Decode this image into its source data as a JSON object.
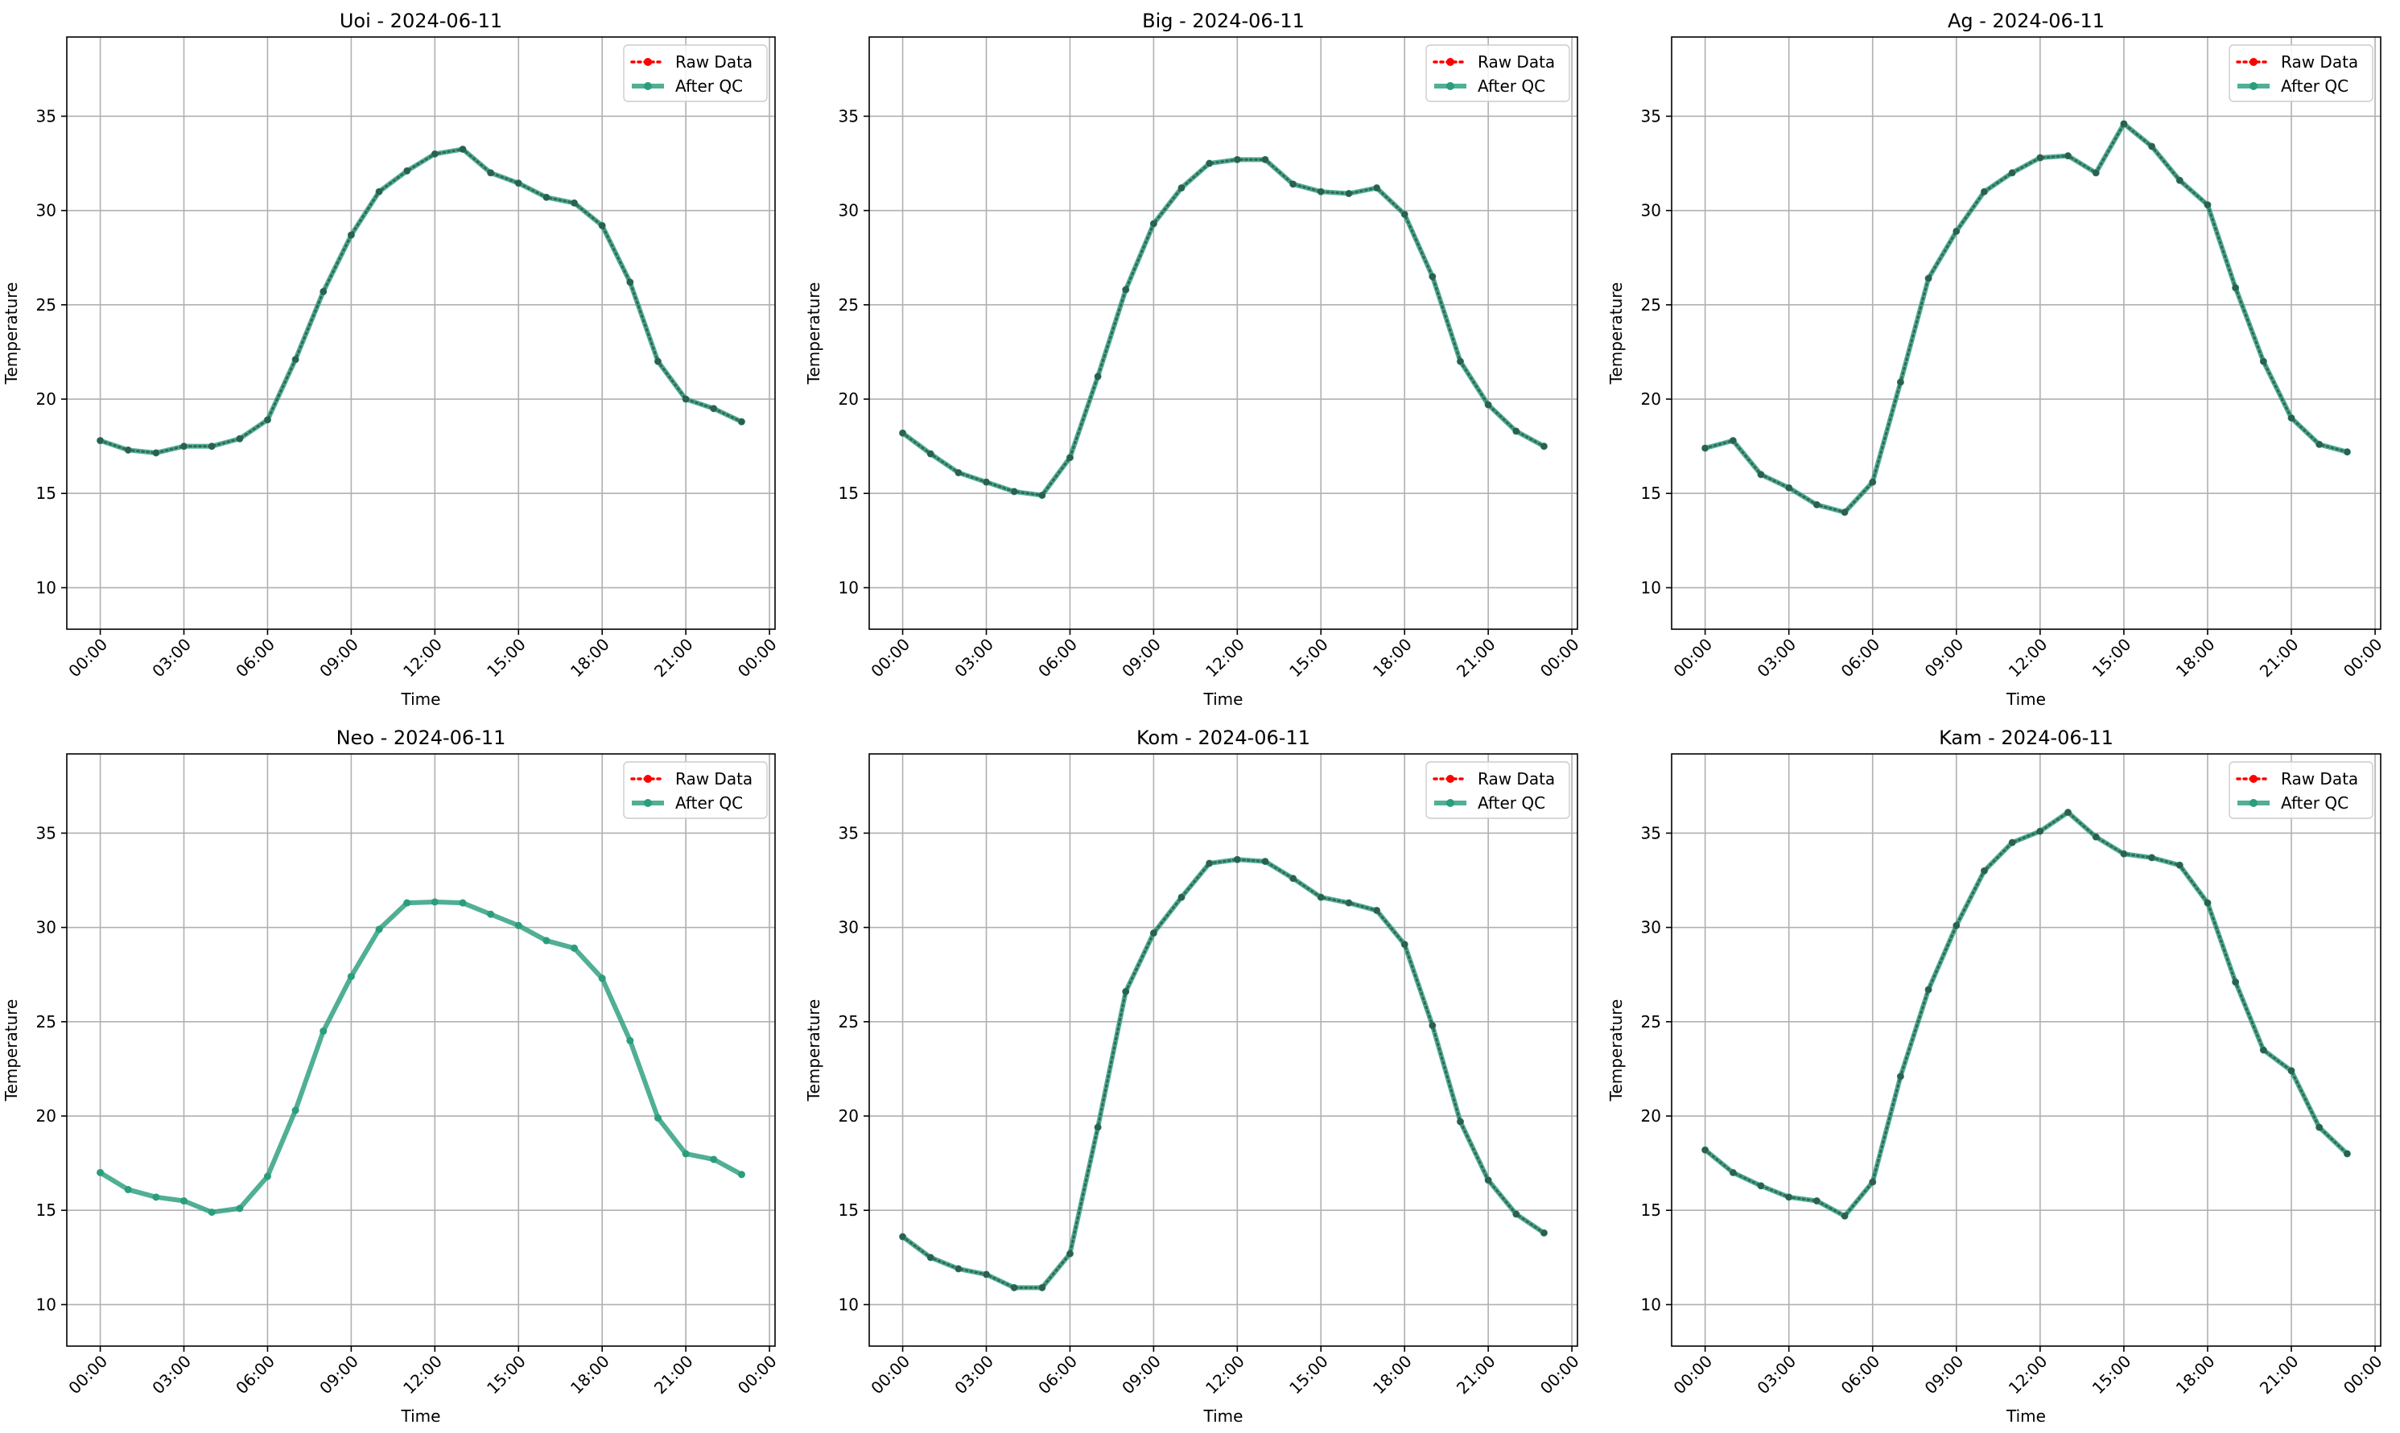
{
  "chart_data": [
    {
      "type": "line",
      "title": "Uoi - 2024-06-11",
      "xlabel": "Time",
      "ylabel": "Temperature",
      "x_ticks": [
        "00:00",
        "03:00",
        "06:00",
        "09:00",
        "12:00",
        "15:00",
        "18:00",
        "21:00",
        "00:00"
      ],
      "y_ticks": [
        10,
        15,
        20,
        25,
        30,
        35
      ],
      "xlim_hours": [
        -1.2,
        24.2
      ],
      "ylim": [
        7.8,
        39.2
      ],
      "grid": true,
      "legend_position": "top-right",
      "colors": {
        "raw": "#ff0000",
        "qc": "#2a9d7c",
        "raw_marker_dark": "#2e5e50"
      },
      "series": [
        {
          "name": "Raw Data",
          "style": "dotted",
          "values": [
            17.8,
            17.3,
            17.15,
            17.5,
            17.5,
            17.9,
            18.9,
            22.1,
            25.7,
            28.7,
            31.0,
            32.1,
            33.0,
            33.25,
            32.0,
            31.45,
            30.7,
            30.4,
            29.2,
            26.2,
            22.0,
            20.0,
            19.5,
            18.8
          ]
        },
        {
          "name": "After QC",
          "style": "solid",
          "values": [
            17.8,
            17.3,
            17.15,
            17.5,
            17.5,
            17.9,
            18.9,
            22.1,
            25.7,
            28.7,
            31.0,
            32.1,
            33.0,
            33.25,
            32.0,
            31.45,
            30.7,
            30.4,
            29.2,
            26.2,
            22.0,
            20.0,
            19.5,
            18.8
          ]
        }
      ]
    },
    {
      "type": "line",
      "title": "Big - 2024-06-11",
      "xlabel": "Time",
      "ylabel": "Temperature",
      "x_ticks": [
        "00:00",
        "03:00",
        "06:00",
        "09:00",
        "12:00",
        "15:00",
        "18:00",
        "21:00",
        "00:00"
      ],
      "y_ticks": [
        10,
        15,
        20,
        25,
        30,
        35
      ],
      "xlim_hours": [
        -1.2,
        24.2
      ],
      "ylim": [
        7.8,
        39.2
      ],
      "grid": true,
      "legend_position": "top-right",
      "colors": {
        "raw": "#ff0000",
        "qc": "#2a9d7c",
        "raw_marker_dark": "#2e5e50"
      },
      "series": [
        {
          "name": "Raw Data",
          "style": "dotted",
          "values": [
            18.2,
            17.1,
            16.1,
            15.6,
            15.1,
            14.9,
            16.9,
            21.2,
            25.8,
            29.3,
            31.2,
            32.5,
            32.7,
            32.7,
            31.4,
            31.0,
            30.9,
            31.2,
            29.8,
            26.5,
            22.0,
            19.7,
            18.3,
            17.5
          ]
        },
        {
          "name": "After QC",
          "style": "solid",
          "values": [
            18.2,
            17.1,
            16.1,
            15.6,
            15.1,
            14.9,
            16.9,
            21.2,
            25.8,
            29.3,
            31.2,
            32.5,
            32.7,
            32.7,
            31.4,
            31.0,
            30.9,
            31.2,
            29.8,
            26.5,
            22.0,
            19.7,
            18.3,
            17.5
          ]
        }
      ]
    },
    {
      "type": "line",
      "title": "Ag - 2024-06-11",
      "xlabel": "Time",
      "ylabel": "Temperature",
      "x_ticks": [
        "00:00",
        "03:00",
        "06:00",
        "09:00",
        "12:00",
        "15:00",
        "18:00",
        "21:00",
        "00:00"
      ],
      "y_ticks": [
        10,
        15,
        20,
        25,
        30,
        35
      ],
      "xlim_hours": [
        -1.2,
        24.2
      ],
      "ylim": [
        7.8,
        39.2
      ],
      "grid": true,
      "legend_position": "top-right",
      "colors": {
        "raw": "#ff0000",
        "qc": "#2a9d7c",
        "raw_marker_dark": "#2e5e50"
      },
      "series": [
        {
          "name": "Raw Data",
          "style": "dotted",
          "values": [
            17.4,
            17.8,
            16.0,
            15.3,
            14.4,
            14.0,
            15.6,
            20.9,
            26.4,
            28.9,
            31.0,
            32.0,
            32.8,
            32.9,
            32.0,
            34.6,
            33.4,
            31.6,
            30.3,
            25.9,
            22.0,
            19.0,
            17.6,
            17.2
          ]
        },
        {
          "name": "After QC",
          "style": "solid",
          "values": [
            17.4,
            17.8,
            16.0,
            15.3,
            14.4,
            14.0,
            15.6,
            20.9,
            26.4,
            28.9,
            31.0,
            32.0,
            32.8,
            32.9,
            32.0,
            34.6,
            33.4,
            31.6,
            30.3,
            25.9,
            22.0,
            19.0,
            17.6,
            17.2
          ]
        }
      ]
    },
    {
      "type": "line",
      "title": "Neo - 2024-06-11",
      "xlabel": "Time",
      "ylabel": "Temperature",
      "x_ticks": [
        "00:00",
        "03:00",
        "06:00",
        "09:00",
        "12:00",
        "15:00",
        "18:00",
        "21:00",
        "00:00"
      ],
      "y_ticks": [
        10,
        15,
        20,
        25,
        30,
        35
      ],
      "xlim_hours": [
        -1.2,
        24.2
      ],
      "ylim": [
        7.8,
        39.2
      ],
      "grid": true,
      "legend_position": "top-right",
      "colors": {
        "raw": "#ff0000",
        "qc": "#2a9d7c",
        "raw_marker_dark": "#2e5e50"
      },
      "series": [
        {
          "name": "Raw Data",
          "style": "dotted",
          "values": []
        },
        {
          "name": "After QC",
          "style": "solid",
          "values": [
            17.0,
            16.1,
            15.7,
            15.5,
            14.9,
            15.1,
            16.8,
            20.3,
            24.5,
            27.4,
            29.9,
            31.3,
            31.35,
            31.3,
            30.7,
            30.1,
            29.3,
            28.9,
            27.3,
            24.0,
            19.9,
            18.0,
            17.7,
            16.9
          ]
        }
      ]
    },
    {
      "type": "line",
      "title": "Kom - 2024-06-11",
      "xlabel": "Time",
      "ylabel": "Temperature",
      "x_ticks": [
        "00:00",
        "03:00",
        "06:00",
        "09:00",
        "12:00",
        "15:00",
        "18:00",
        "21:00",
        "00:00"
      ],
      "y_ticks": [
        10,
        15,
        20,
        25,
        30,
        35
      ],
      "xlim_hours": [
        -1.2,
        24.2
      ],
      "ylim": [
        7.8,
        39.2
      ],
      "grid": true,
      "legend_position": "top-right",
      "colors": {
        "raw": "#ff0000",
        "qc": "#2a9d7c",
        "raw_marker_dark": "#2e5e50"
      },
      "series": [
        {
          "name": "Raw Data",
          "style": "dotted",
          "values": [
            13.6,
            12.5,
            11.9,
            11.6,
            10.9,
            10.9,
            12.7,
            19.4,
            26.6,
            29.7,
            31.6,
            33.4,
            33.6,
            33.5,
            32.6,
            31.6,
            31.3,
            30.9,
            29.1,
            24.8,
            19.7,
            16.6,
            14.8,
            13.8
          ]
        },
        {
          "name": "After QC",
          "style": "solid",
          "values": [
            13.6,
            12.5,
            11.9,
            11.6,
            10.9,
            10.9,
            12.7,
            19.4,
            26.6,
            29.7,
            31.6,
            33.4,
            33.6,
            33.5,
            32.6,
            31.6,
            31.3,
            30.9,
            29.1,
            24.8,
            19.7,
            16.6,
            14.8,
            13.8
          ]
        }
      ]
    },
    {
      "type": "line",
      "title": "Kam - 2024-06-11",
      "xlabel": "Time",
      "ylabel": "Temperature",
      "x_ticks": [
        "00:00",
        "03:00",
        "06:00",
        "09:00",
        "12:00",
        "15:00",
        "18:00",
        "21:00",
        "00:00"
      ],
      "y_ticks": [
        10,
        15,
        20,
        25,
        30,
        35
      ],
      "xlim_hours": [
        -1.2,
        24.2
      ],
      "ylim": [
        7.8,
        39.2
      ],
      "grid": true,
      "legend_position": "top-right",
      "colors": {
        "raw": "#ff0000",
        "qc": "#2a9d7c",
        "raw_marker_dark": "#2e5e50"
      },
      "series": [
        {
          "name": "Raw Data",
          "style": "dotted",
          "values": [
            18.2,
            17.0,
            16.3,
            15.7,
            15.5,
            14.7,
            16.5,
            22.1,
            26.7,
            30.1,
            33.0,
            34.5,
            35.1,
            36.1,
            34.8,
            33.9,
            33.7,
            33.3,
            31.3,
            27.1,
            23.5,
            22.4,
            19.4,
            18.0
          ]
        },
        {
          "name": "After QC",
          "style": "solid",
          "values": [
            18.2,
            17.0,
            16.3,
            15.7,
            15.5,
            14.7,
            16.5,
            22.1,
            26.7,
            30.1,
            33.0,
            34.5,
            35.1,
            36.1,
            34.8,
            33.9,
            33.7,
            33.3,
            31.3,
            27.1,
            23.5,
            22.4,
            19.4,
            18.0
          ]
        }
      ]
    }
  ]
}
